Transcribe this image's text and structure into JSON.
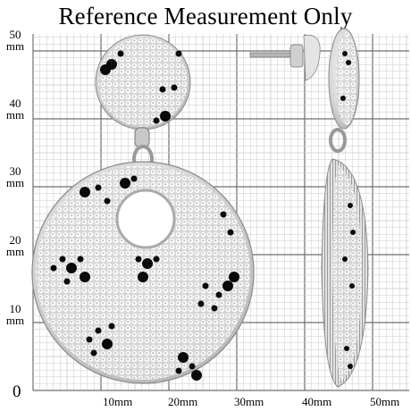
{
  "title": "Reference Measurement Only",
  "y_axis": [
    {
      "value": "50",
      "unit": "mm"
    },
    {
      "value": "40",
      "unit": "mm"
    },
    {
      "value": "30",
      "unit": "mm"
    },
    {
      "value": "20",
      "unit": "mm"
    },
    {
      "value": "10",
      "unit": "mm"
    }
  ],
  "origin_label": "0",
  "x_axis": [
    "10mm",
    "20mm",
    "30mm",
    "40mm",
    "50mm"
  ],
  "colors": {
    "grid_major": "#6f6f6f",
    "grid_minor": "#c9c9c9",
    "metal": "#d9d9d9",
    "stone_black": "#0a0a0a"
  }
}
